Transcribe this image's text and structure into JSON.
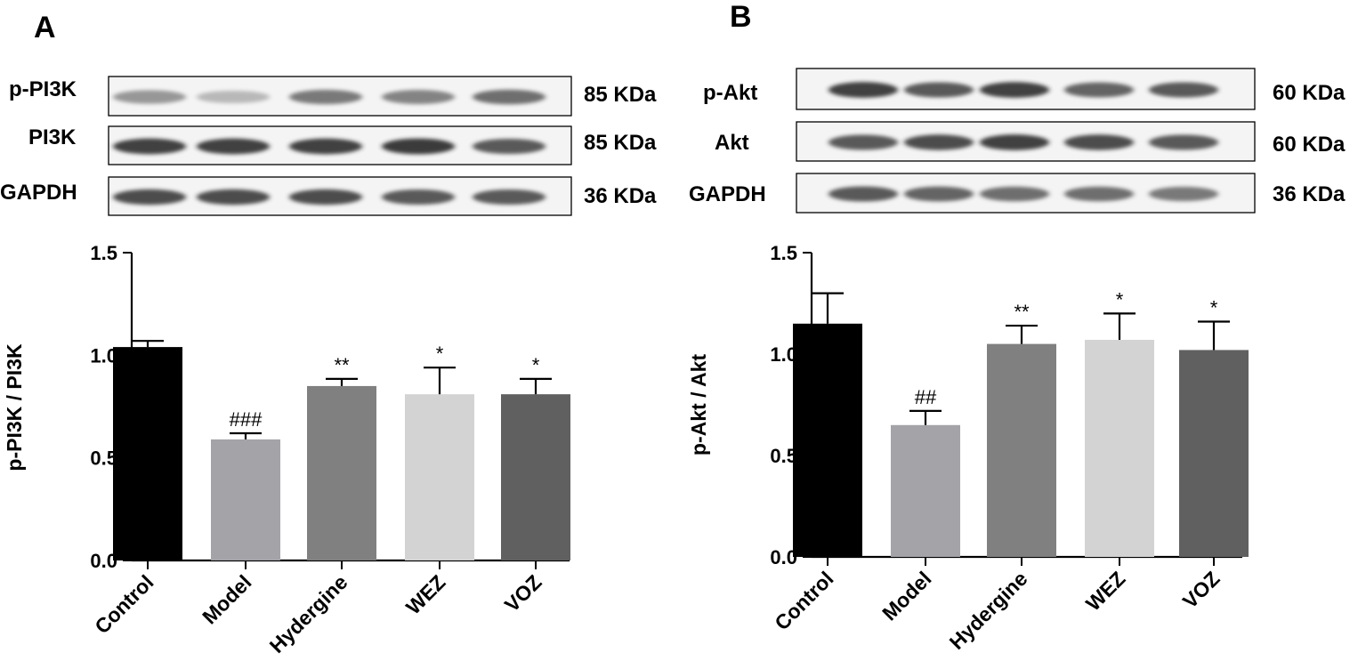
{
  "panels": [
    {
      "letter": "A",
      "blots": [
        {
          "name": "p-PI3K",
          "size": "85 KDa"
        },
        {
          "name": "PI3K",
          "size": "85 KDa"
        },
        {
          "name": "GAPDH",
          "size": "36 KDa"
        }
      ],
      "band_intensity": [
        [
          0.55,
          0.35,
          0.7,
          0.65,
          0.75
        ],
        [
          0.95,
          0.95,
          0.95,
          0.97,
          0.85
        ],
        [
          0.9,
          0.9,
          0.9,
          0.85,
          0.85
        ]
      ]
    },
    {
      "letter": "B",
      "blots": [
        {
          "name": "p-Akt",
          "size": "60 KDa"
        },
        {
          "name": "Akt",
          "size": "60 KDa"
        },
        {
          "name": "GAPDH",
          "size": "36 KDa"
        }
      ],
      "band_intensity": [
        [
          0.95,
          0.85,
          0.95,
          0.8,
          0.85
        ],
        [
          0.85,
          0.9,
          0.95,
          0.9,
          0.85
        ],
        [
          0.85,
          0.8,
          0.75,
          0.75,
          0.7
        ]
      ]
    }
  ],
  "chart_data": [
    {
      "type": "bar",
      "categories": [
        "Control",
        "Model",
        "Hydergine",
        "WEZ",
        "VOZ"
      ],
      "values": [
        1.04,
        0.59,
        0.85,
        0.81,
        0.81
      ],
      "errors": [
        0.03,
        0.03,
        0.035,
        0.13,
        0.075
      ],
      "annotations": [
        "",
        "###",
        "**",
        "*",
        "*"
      ],
      "colors": [
        "#000000",
        "#a3a3a8",
        "#808080",
        "#d3d3d3",
        "#606060"
      ],
      "ylabel": "p-PI3K / PI3K",
      "ylim": [
        0,
        1.5
      ],
      "yticks": [
        "0.0",
        "0.5",
        "1.0",
        "1.5"
      ]
    },
    {
      "type": "bar",
      "categories": [
        "Control",
        "Model",
        "Hydergine",
        "WEZ",
        "VOZ"
      ],
      "values": [
        1.15,
        0.65,
        1.05,
        1.07,
        1.02
      ],
      "errors": [
        0.15,
        0.07,
        0.09,
        0.13,
        0.14
      ],
      "annotations": [
        "",
        "##",
        "**",
        "*",
        "*"
      ],
      "colors": [
        "#000000",
        "#a3a3a8",
        "#808080",
        "#d3d3d3",
        "#606060"
      ],
      "ylabel": "p-Akt / Akt",
      "ylim": [
        0,
        1.5
      ],
      "yticks": [
        "0.0",
        "0.5",
        "1.0",
        "1.5"
      ]
    }
  ]
}
